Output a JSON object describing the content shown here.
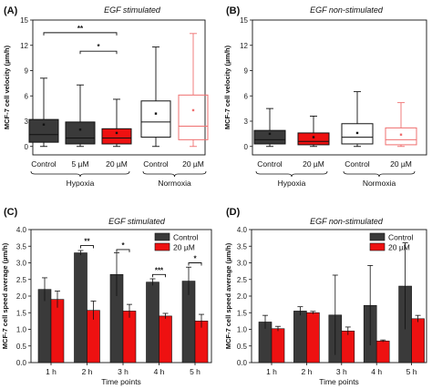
{
  "colors": {
    "dark": "#3a3a3a",
    "red": "#ee1111",
    "light_red": "#ef6f6f",
    "black": "#111111"
  },
  "chart_data": [
    {
      "panel": "(A)",
      "type": "box",
      "title": "EGF stimulated",
      "ylabel": "MCF-7 cell velocity (µm/h)",
      "ylim": [
        -1,
        15
      ],
      "yticks": [
        0,
        3,
        6,
        9,
        12,
        15
      ],
      "groups": [
        {
          "label": "Hypoxia",
          "from": 0,
          "to": 2
        },
        {
          "label": "Normoxia",
          "from": 3,
          "to": 4
        }
      ],
      "boxes": [
        {
          "label": "Control",
          "q1": 0.5,
          "median": 1.4,
          "q3": 3.2,
          "mean": 2.6,
          "whisker_low": 0,
          "whisker_high": 8.1,
          "color": "dark"
        },
        {
          "label": "5 µM",
          "q1": 0.3,
          "median": 1.0,
          "q3": 2.9,
          "mean": 2.0,
          "whisker_low": 0,
          "whisker_high": 7.3,
          "color": "dark"
        },
        {
          "label": "20 µM",
          "q1": 0.3,
          "median": 1.0,
          "q3": 2.1,
          "mean": 1.6,
          "whisker_low": 0,
          "whisker_high": 5.6,
          "color": "red"
        },
        {
          "label": "Control",
          "q1": 1.1,
          "median": 2.9,
          "q3": 5.4,
          "mean": 3.9,
          "whisker_low": 0,
          "whisker_high": 11.8,
          "color": "black_outline"
        },
        {
          "label": "20 µM",
          "q1": 0.8,
          "median": 2.4,
          "q3": 6.1,
          "mean": 4.3,
          "whisker_low": 0,
          "whisker_high": 13.4,
          "color": "light_red_outline"
        }
      ],
      "significance": [
        {
          "from": 0,
          "to": 2,
          "label": "**",
          "y": 13.5
        },
        {
          "from": 1,
          "to": 2,
          "label": "*",
          "y": 11.3
        }
      ]
    },
    {
      "panel": "(B)",
      "type": "box",
      "title": "EGF non-stimulated",
      "ylabel": "MCF-7 cell velocity (µm/h)",
      "ylim": [
        -1,
        15
      ],
      "yticks": [
        0,
        3,
        6,
        9,
        12,
        15
      ],
      "groups": [
        {
          "label": "Hypoxia",
          "from": 0,
          "to": 1
        },
        {
          "label": "Normoxia",
          "from": 2,
          "to": 3
        }
      ],
      "boxes": [
        {
          "label": "Control",
          "q1": 0.3,
          "median": 0.8,
          "q3": 1.9,
          "mean": 1.5,
          "whisker_low": 0,
          "whisker_high": 4.5,
          "color": "dark"
        },
        {
          "label": "20 µM",
          "q1": 0.2,
          "median": 0.6,
          "q3": 1.6,
          "mean": 1.1,
          "whisker_low": 0,
          "whisker_high": 3.6,
          "color": "red"
        },
        {
          "label": "Control",
          "q1": 0.3,
          "median": 1.1,
          "q3": 2.7,
          "mean": 1.6,
          "whisker_low": 0,
          "whisker_high": 6.5,
          "color": "black_outline"
        },
        {
          "label": "20 µM",
          "q1": 0.2,
          "median": 0.8,
          "q3": 2.2,
          "mean": 1.4,
          "whisker_low": 0,
          "whisker_high": 5.2,
          "color": "light_red_outline"
        }
      ],
      "significance": []
    },
    {
      "panel": "(C)",
      "type": "bar",
      "title": "EGF stimulated",
      "ylabel": "MCF-7 cell speed average (µm/h)",
      "xlabel": "Time points",
      "ylim": [
        0,
        4
      ],
      "yticks": [
        0.0,
        0.5,
        1.0,
        1.5,
        2.0,
        2.5,
        3.0,
        3.5,
        4.0
      ],
      "categories": [
        "1 h",
        "2 h",
        "3 h",
        "4 h",
        "5 h"
      ],
      "legend": "top-right",
      "series": [
        {
          "name": "Control",
          "color": "dark",
          "values": [
            2.2,
            3.3,
            2.65,
            2.42,
            2.45
          ],
          "errors": [
            0.35,
            0.07,
            0.65,
            0.1,
            0.42
          ]
        },
        {
          "name": "20 µM",
          "color": "red",
          "values": [
            1.9,
            1.57,
            1.55,
            1.4,
            1.25
          ],
          "errors": [
            0.25,
            0.28,
            0.2,
            0.08,
            0.2
          ]
        }
      ],
      "significance": [
        {
          "index": 1,
          "label": "**",
          "y": 3.52
        },
        {
          "index": 2,
          "label": "*",
          "y": 3.4
        },
        {
          "index": 3,
          "label": "***",
          "y": 2.65
        },
        {
          "index": 4,
          "label": "*",
          "y": 3.0
        }
      ]
    },
    {
      "panel": "(D)",
      "type": "bar",
      "title": "EGF non-stimulated",
      "ylabel": "MCF-7 cell speed average (µm/h)",
      "xlabel": "Time points",
      "ylim": [
        0,
        4
      ],
      "yticks": [
        0.0,
        0.5,
        1.0,
        1.5,
        2.0,
        2.5,
        3.0,
        3.5,
        4.0
      ],
      "categories": [
        "1 h",
        "2 h",
        "3 h",
        "4 h",
        "5 h"
      ],
      "legend": "top-right",
      "series": [
        {
          "name": "Control",
          "color": "dark",
          "values": [
            1.22,
            1.55,
            1.43,
            1.72,
            2.3
          ],
          "errors": [
            0.2,
            0.13,
            1.2,
            1.2,
            1.3
          ]
        },
        {
          "name": "20 µM",
          "color": "red",
          "values": [
            1.02,
            1.5,
            0.95,
            0.65,
            1.32
          ],
          "errors": [
            0.07,
            0.04,
            0.12,
            0.03,
            0.1
          ]
        }
      ],
      "significance": []
    }
  ]
}
